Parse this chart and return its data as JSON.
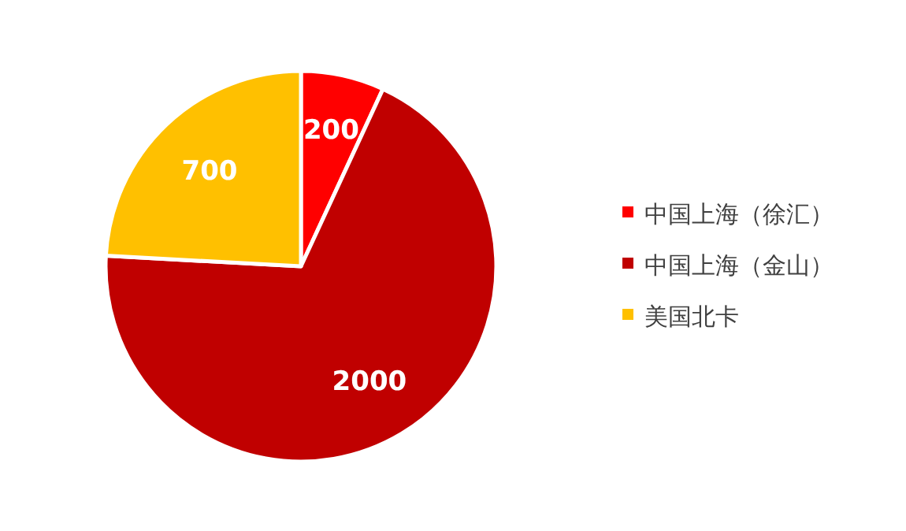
{
  "chart_data": {
    "type": "pie",
    "categories": [
      "中国上海（徐汇）",
      "中国上海（金山）",
      "美国北卡"
    ],
    "values": [
      200,
      2000,
      700
    ],
    "colors": [
      "#ff0000",
      "#c00000",
      "#ffc000"
    ],
    "data_labels": true,
    "legend": "right"
  }
}
